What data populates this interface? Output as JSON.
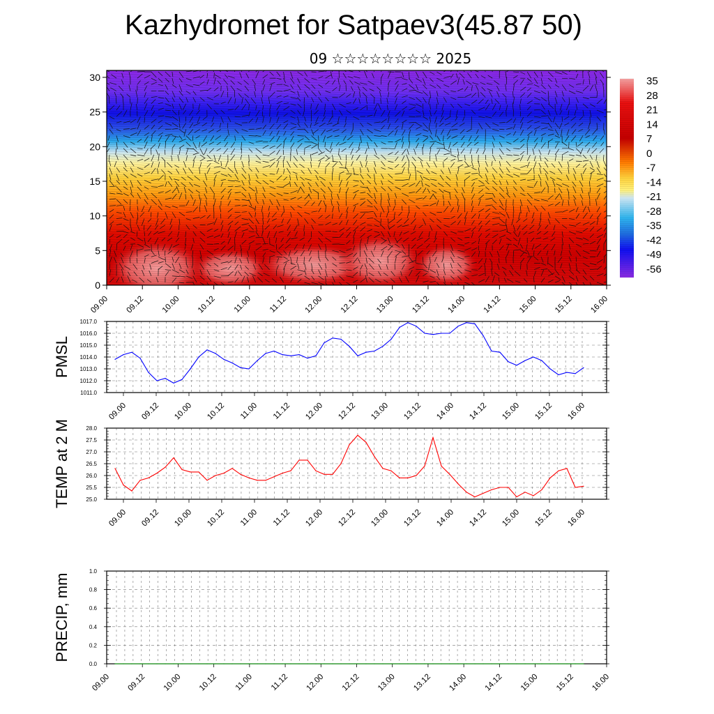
{
  "title": "Kazhydromet for Satpaev3(45.87 50)",
  "subtitle": "09 ☆☆☆☆☆☆☆☆ 2025",
  "chart_data": [
    {
      "type": "heatmap",
      "title": "",
      "x_tick_labels": [
        "09.00",
        "09.12",
        "10.00",
        "10.12",
        "11.00",
        "11.12",
        "12.00",
        "12.12",
        "13.00",
        "13.12",
        "14.00",
        "14.12",
        "15.00",
        "15.12",
        "16.00"
      ],
      "y_ticks": [
        0,
        5,
        10,
        15,
        20,
        25,
        30
      ],
      "ylim": [
        0,
        31
      ],
      "colorbar_labels": [
        "35",
        "28",
        "21",
        "14",
        "7",
        "0",
        "-7",
        "-14",
        "-21",
        "-28",
        "-35",
        "-42",
        "-49",
        "-56"
      ],
      "colorbar_range": [
        -60,
        39
      ],
      "field": "temperature vs height level with wind arrows",
      "warm_maxima_near_level": 2
    },
    {
      "type": "line",
      "ylabel": "PMSL",
      "ylim": [
        1011.0,
        1017.0
      ],
      "y_tick_labels": [
        "1011.0",
        "1012.0",
        "1013.0",
        "1014.0",
        "1015.0",
        "1016.0",
        "1017.0"
      ],
      "x_tick_labels": [
        "09.00",
        "09.12",
        "10.00",
        "10.12",
        "11.00",
        "11.12",
        "12.00",
        "12.12",
        "13.00",
        "13.12",
        "14.00",
        "14.12",
        "15.00",
        "15.12",
        "16.00"
      ],
      "color": "#0000ff",
      "values": [
        1013.8,
        1014.2,
        1014.4,
        1013.9,
        1012.7,
        1012.0,
        1012.2,
        1011.8,
        1012.1,
        1013.0,
        1014.0,
        1014.6,
        1014.3,
        1013.8,
        1013.5,
        1013.1,
        1013.0,
        1013.7,
        1014.3,
        1014.5,
        1014.2,
        1014.1,
        1014.2,
        1013.9,
        1014.1,
        1015.2,
        1015.6,
        1015.5,
        1014.9,
        1014.1,
        1014.4,
        1014.5,
        1014.9,
        1015.5,
        1016.5,
        1016.9,
        1016.6,
        1016.0,
        1015.9,
        1016.0,
        1016.0,
        1016.6,
        1016.9,
        1016.8,
        1015.8,
        1014.5,
        1014.4,
        1013.6,
        1013.3,
        1013.7,
        1014.0,
        1013.7,
        1013.0,
        1012.5,
        1012.7,
        1012.6,
        1013.1
      ]
    },
    {
      "type": "line",
      "ylabel": "TEMP at 2 M",
      "ylim": [
        25.0,
        28.0
      ],
      "y_tick_labels": [
        "25.0",
        "25.5",
        "26.0",
        "26.5",
        "27.0",
        "27.5",
        "28.0"
      ],
      "x_tick_labels": [
        "09.00",
        "09.12",
        "10.00",
        "10.12",
        "11.00",
        "11.12",
        "12.00",
        "12.12",
        "13.00",
        "13.12",
        "14.00",
        "14.12",
        "15.00",
        "15.12",
        "16.00"
      ],
      "color": "#ff0000",
      "values": [
        26.3,
        25.6,
        25.35,
        25.8,
        25.9,
        26.1,
        26.35,
        26.75,
        26.25,
        26.15,
        26.15,
        25.8,
        26.0,
        26.1,
        26.3,
        26.05,
        25.9,
        25.8,
        25.8,
        25.95,
        26.1,
        26.2,
        26.65,
        26.65,
        26.2,
        26.05,
        26.05,
        26.5,
        27.3,
        27.7,
        27.4,
        26.8,
        26.3,
        26.2,
        25.9,
        25.9,
        26.0,
        26.4,
        27.6,
        26.4,
        26.05,
        25.65,
        25.3,
        25.1,
        25.25,
        25.4,
        25.5,
        25.5,
        25.1,
        25.3,
        25.15,
        25.4,
        25.9,
        26.2,
        26.3,
        25.5,
        25.55
      ]
    },
    {
      "type": "line",
      "ylabel": "PRECIP, mm",
      "ylim": [
        0.0,
        1.0
      ],
      "y_tick_labels": [
        "0.0",
        "0.2",
        "0.4",
        "0.6",
        "0.8",
        "1.0"
      ],
      "x_tick_labels": [
        "09.00",
        "09.12",
        "10.00",
        "10.12",
        "11.00",
        "11.12",
        "12.00",
        "12.12",
        "13.00",
        "13.12",
        "14.00",
        "14.12",
        "15.00",
        "15.12",
        "16.00"
      ],
      "color": "#009900",
      "values": [
        0,
        0,
        0,
        0,
        0,
        0,
        0,
        0,
        0,
        0,
        0,
        0,
        0,
        0,
        0,
        0,
        0,
        0,
        0,
        0,
        0,
        0,
        0,
        0,
        0,
        0,
        0,
        0,
        0,
        0,
        0,
        0,
        0,
        0,
        0,
        0,
        0,
        0,
        0,
        0,
        0,
        0,
        0,
        0,
        0,
        0,
        0,
        0,
        0,
        0,
        0,
        0,
        0,
        0,
        0,
        0,
        0
      ]
    }
  ]
}
